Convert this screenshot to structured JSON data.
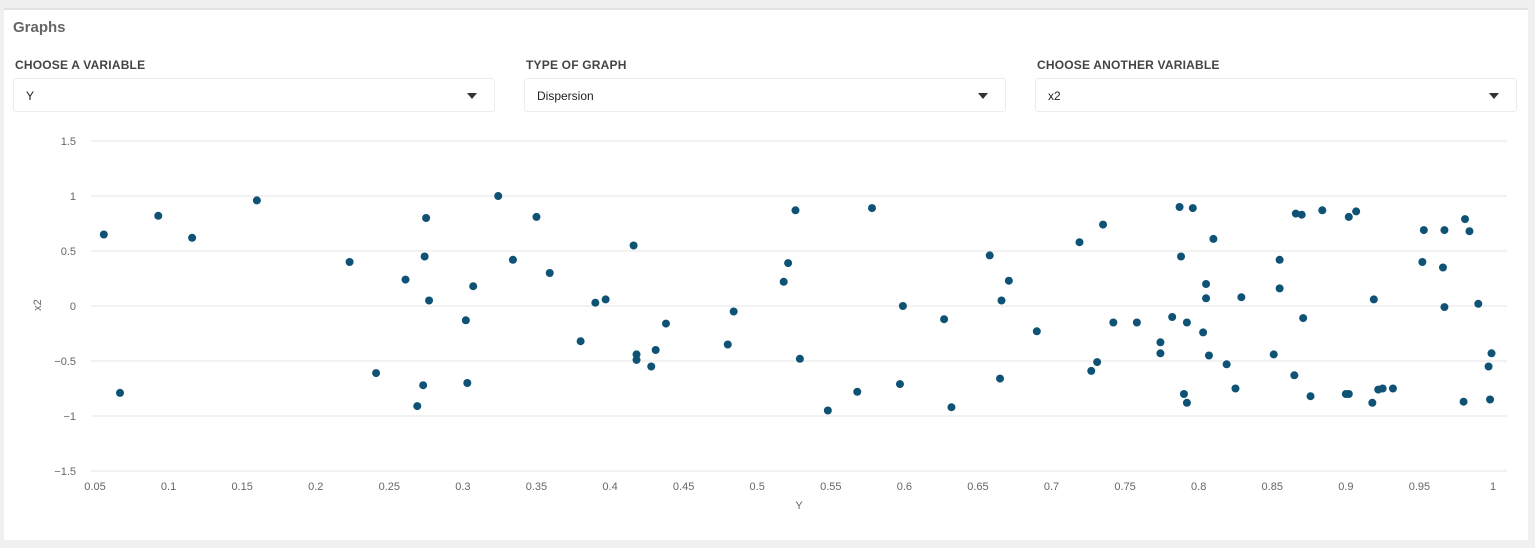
{
  "panel": {
    "title": "Graphs"
  },
  "controls": [
    {
      "label": "CHOOSE A VARIABLE",
      "value": "Y"
    },
    {
      "label": "TYPE OF GRAPH",
      "value": "Dispersion"
    },
    {
      "label": "CHOOSE ANOTHER VARIABLE",
      "value": "x2"
    }
  ],
  "colors": {
    "point": "#0e5275",
    "grid": "#e6e6e6",
    "tick": "#666666"
  },
  "chart_data": {
    "type": "scatter",
    "xlabel": "Y",
    "ylabel": "x2",
    "xlim": [
      0.05,
      1
    ],
    "ylim": [
      -1.5,
      1.5
    ],
    "grid": true,
    "x_ticks": [
      "0.05",
      "0.1",
      "0.15",
      "0.2",
      "0.25",
      "0.3",
      "0.35",
      "0.4",
      "0.45",
      "0.5",
      "0.55",
      "0.6",
      "0.65",
      "0.7",
      "0.75",
      "0.8",
      "0.85",
      "0.9",
      "0.95",
      "1"
    ],
    "y_ticks": [
      "1.5",
      "1",
      "0.5",
      "0",
      "−0.5",
      "−1",
      "−1.5"
    ],
    "points": [
      [
        0.056,
        0.65
      ],
      [
        0.067,
        -0.79
      ],
      [
        0.093,
        0.82
      ],
      [
        0.116,
        0.62
      ],
      [
        0.16,
        0.96
      ],
      [
        0.223,
        0.4
      ],
      [
        0.241,
        -0.61
      ],
      [
        0.261,
        0.24
      ],
      [
        0.269,
        -0.91
      ],
      [
        0.273,
        -0.72
      ],
      [
        0.274,
        0.45
      ],
      [
        0.275,
        0.8
      ],
      [
        0.277,
        0.05
      ],
      [
        0.302,
        -0.13
      ],
      [
        0.303,
        -0.7
      ],
      [
        0.307,
        0.18
      ],
      [
        0.324,
        1.0
      ],
      [
        0.334,
        0.42
      ],
      [
        0.35,
        0.81
      ],
      [
        0.359,
        0.3
      ],
      [
        0.38,
        -0.32
      ],
      [
        0.39,
        0.03
      ],
      [
        0.397,
        0.06
      ],
      [
        0.416,
        0.55
      ],
      [
        0.418,
        -0.44
      ],
      [
        0.418,
        -0.49
      ],
      [
        0.428,
        -0.55
      ],
      [
        0.431,
        -0.4
      ],
      [
        0.438,
        -0.16
      ],
      [
        0.48,
        -0.35
      ],
      [
        0.484,
        -0.05
      ],
      [
        0.518,
        0.22
      ],
      [
        0.521,
        0.39
      ],
      [
        0.526,
        0.87
      ],
      [
        0.529,
        -0.48
      ],
      [
        0.548,
        -0.95
      ],
      [
        0.568,
        -0.78
      ],
      [
        0.578,
        0.89
      ],
      [
        0.597,
        -0.71
      ],
      [
        0.599,
        0.0
      ],
      [
        0.627,
        -0.12
      ],
      [
        0.632,
        -0.92
      ],
      [
        0.658,
        0.46
      ],
      [
        0.665,
        -0.66
      ],
      [
        0.666,
        0.05
      ],
      [
        0.671,
        0.23
      ],
      [
        0.69,
        -0.23
      ],
      [
        0.719,
        0.58
      ],
      [
        0.727,
        -0.59
      ],
      [
        0.731,
        -0.51
      ],
      [
        0.735,
        0.74
      ],
      [
        0.742,
        -0.15
      ],
      [
        0.758,
        -0.15
      ],
      [
        0.774,
        -0.33
      ],
      [
        0.774,
        -0.43
      ],
      [
        0.782,
        -0.1
      ],
      [
        0.787,
        0.9
      ],
      [
        0.788,
        0.45
      ],
      [
        0.79,
        -0.8
      ],
      [
        0.792,
        -0.88
      ],
      [
        0.792,
        -0.15
      ],
      [
        0.796,
        0.89
      ],
      [
        0.803,
        -0.24
      ],
      [
        0.805,
        0.2
      ],
      [
        0.805,
        0.07
      ],
      [
        0.807,
        -0.45
      ],
      [
        0.81,
        0.61
      ],
      [
        0.819,
        -0.53
      ],
      [
        0.825,
        -0.75
      ],
      [
        0.829,
        0.08
      ],
      [
        0.851,
        -0.44
      ],
      [
        0.855,
        0.42
      ],
      [
        0.855,
        0.16
      ],
      [
        0.865,
        -0.63
      ],
      [
        0.866,
        0.84
      ],
      [
        0.87,
        0.83
      ],
      [
        0.871,
        -0.11
      ],
      [
        0.876,
        -0.82
      ],
      [
        0.884,
        0.87
      ],
      [
        0.9,
        -0.8
      ],
      [
        0.902,
        -0.8
      ],
      [
        0.902,
        0.81
      ],
      [
        0.907,
        0.86
      ],
      [
        0.918,
        -0.88
      ],
      [
        0.919,
        0.06
      ],
      [
        0.922,
        -0.76
      ],
      [
        0.925,
        -0.75
      ],
      [
        0.932,
        -0.75
      ],
      [
        0.952,
        0.4
      ],
      [
        0.953,
        0.69
      ],
      [
        0.966,
        0.35
      ],
      [
        0.967,
        0.69
      ],
      [
        0.967,
        -0.01
      ],
      [
        0.98,
        -0.87
      ],
      [
        0.981,
        0.79
      ],
      [
        0.984,
        0.68
      ],
      [
        0.99,
        0.02
      ],
      [
        0.997,
        -0.55
      ],
      [
        0.998,
        -0.85
      ],
      [
        0.999,
        -0.43
      ]
    ]
  }
}
